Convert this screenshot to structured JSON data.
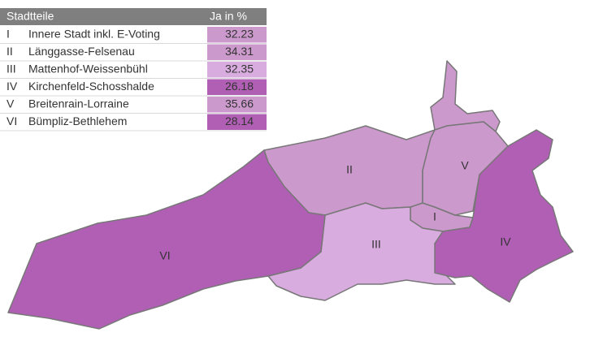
{
  "table": {
    "header": [
      "Stadtteile",
      "Ja in %"
    ],
    "rows": [
      {
        "numeral": "I",
        "name": "Innere Stadt inkl. E-Voting",
        "value": 32.23,
        "color": "#cc99cc"
      },
      {
        "numeral": "II",
        "name": "Länggasse-Felsenau",
        "value": 34.31,
        "color": "#cc99cc"
      },
      {
        "numeral": "III",
        "name": "Mattenhof-Weissenbühl",
        "value": 32.35,
        "color": "#d9ace0"
      },
      {
        "numeral": "IV",
        "name": "Kirchenfeld-Schosshalde",
        "value": 26.18,
        "color": "#b15fb5"
      },
      {
        "numeral": "V",
        "name": "Breitenrain-Lorraine",
        "value": 35.66,
        "color": "#cc99cc"
      },
      {
        "numeral": "VI",
        "name": "Bümpliz-Bethlehem",
        "value": 28.14,
        "color": "#b15fb5"
      }
    ]
  }
}
